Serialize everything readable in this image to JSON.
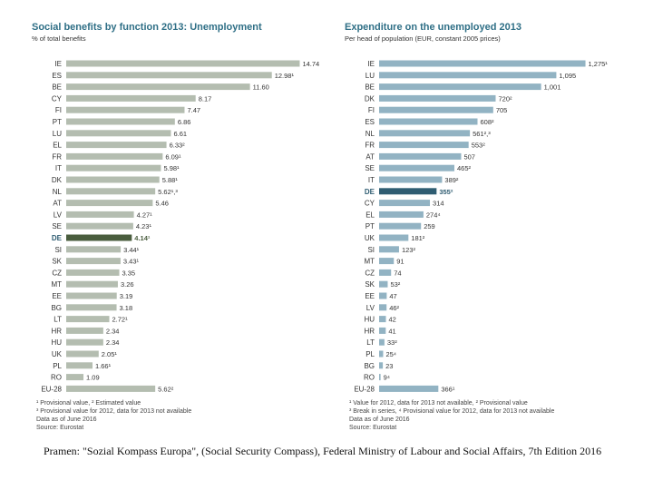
{
  "chart_data": [
    {
      "type": "bar",
      "orientation": "horizontal",
      "title": "Social benefits by function 2013: Unemployment",
      "subtitle": "% of total benefits",
      "categories": [
        "IE",
        "ES",
        "BE",
        "CY",
        "FI",
        "PT",
        "LU",
        "EL",
        "FR",
        "IT",
        "DK",
        "NL",
        "AT",
        "LV",
        "SE",
        "DE",
        "SI",
        "SK",
        "CZ",
        "MT",
        "EE",
        "BG",
        "LT",
        "HR",
        "HU",
        "UK",
        "PL",
        "RO",
        "EU-28"
      ],
      "values": [
        14.74,
        12.98,
        11.6,
        8.17,
        7.47,
        6.86,
        6.61,
        6.33,
        6.09,
        5.98,
        5.88,
        5.62,
        5.46,
        4.27,
        4.23,
        4.14,
        3.44,
        3.43,
        3.35,
        3.26,
        3.19,
        3.18,
        2.72,
        2.34,
        2.34,
        2.05,
        1.66,
        1.09,
        5.62
      ],
      "labels": [
        "14.74",
        "12.98¹",
        "11.60",
        "8.17",
        "7.47",
        "6.86",
        "6.61",
        "6.33²",
        "6.09¹",
        "5.98¹",
        "5.88¹",
        "5.62¹,³",
        "5.46",
        "4.27¹",
        "4.23¹",
        "4.14¹",
        "3.44¹",
        "3.43¹",
        "3.35",
        "3.26",
        "3.19",
        "3.18",
        "2.72¹",
        "2.34",
        "2.34",
        "2.05¹",
        "1.66¹",
        "1.09",
        "5.62²"
      ],
      "highlight": "DE",
      "xlim": [
        0,
        15
      ],
      "footnotes": [
        "¹ Provisional value, ² Estimated value",
        "³ Provisional value for 2012, data for 2013 not available",
        "Data as of June 2016",
        "Source: Eurostat"
      ]
    },
    {
      "type": "bar",
      "orientation": "horizontal",
      "title": "Expenditure on the unemployed 2013",
      "subtitle": "Per head of population (EUR, constant 2005 prices)",
      "categories": [
        "IE",
        "LU",
        "BE",
        "DK",
        "FI",
        "ES",
        "NL",
        "FR",
        "AT",
        "SE",
        "IT",
        "DE",
        "CY",
        "EL",
        "PT",
        "UK",
        "SI",
        "MT",
        "CZ",
        "SK",
        "EE",
        "LV",
        "HU",
        "HR",
        "LT",
        "PL",
        "BG",
        "RO",
        "EU-28"
      ],
      "values": [
        1275,
        1095,
        1001,
        720,
        705,
        608,
        561,
        553,
        507,
        465,
        389,
        355,
        314,
        274,
        259,
        181,
        123,
        91,
        74,
        53,
        47,
        46,
        42,
        41,
        33,
        25,
        23,
        9,
        366
      ],
      "labels": [
        "1,275¹",
        "1,095",
        "1,001",
        "720²",
        "705",
        "608²",
        "561²,³",
        "553²",
        "507",
        "465²",
        "389²",
        "355²",
        "314",
        "274⁴",
        "259",
        "181²",
        "123²",
        "91",
        "74",
        "53²",
        "47",
        "46²",
        "42",
        "41",
        "33²",
        "25⁴",
        "23",
        "9⁴",
        "366¹"
      ],
      "highlight": "DE",
      "xlim": [
        0,
        1300
      ],
      "footnotes": [
        "¹ Value for 2012, data for 2013 not available, ² Provisional value",
        "³ Break in series, ⁴ Provisional value for 2012, data for 2013 not available",
        "Data as of June 2016",
        "Source: Eurostat"
      ]
    }
  ],
  "colors": {
    "bar": "#b4bdb0",
    "highlight": "#4a5d3e",
    "bar_right": "#92b3c3",
    "highlight_right": "#2f5d72",
    "title": "#2f6f86"
  },
  "caption": "Pramen: \"Sozial Kompass Europa\", (Social Security Compass), Federal Ministry of Labour and Social Affairs, 7th Edition 2016"
}
